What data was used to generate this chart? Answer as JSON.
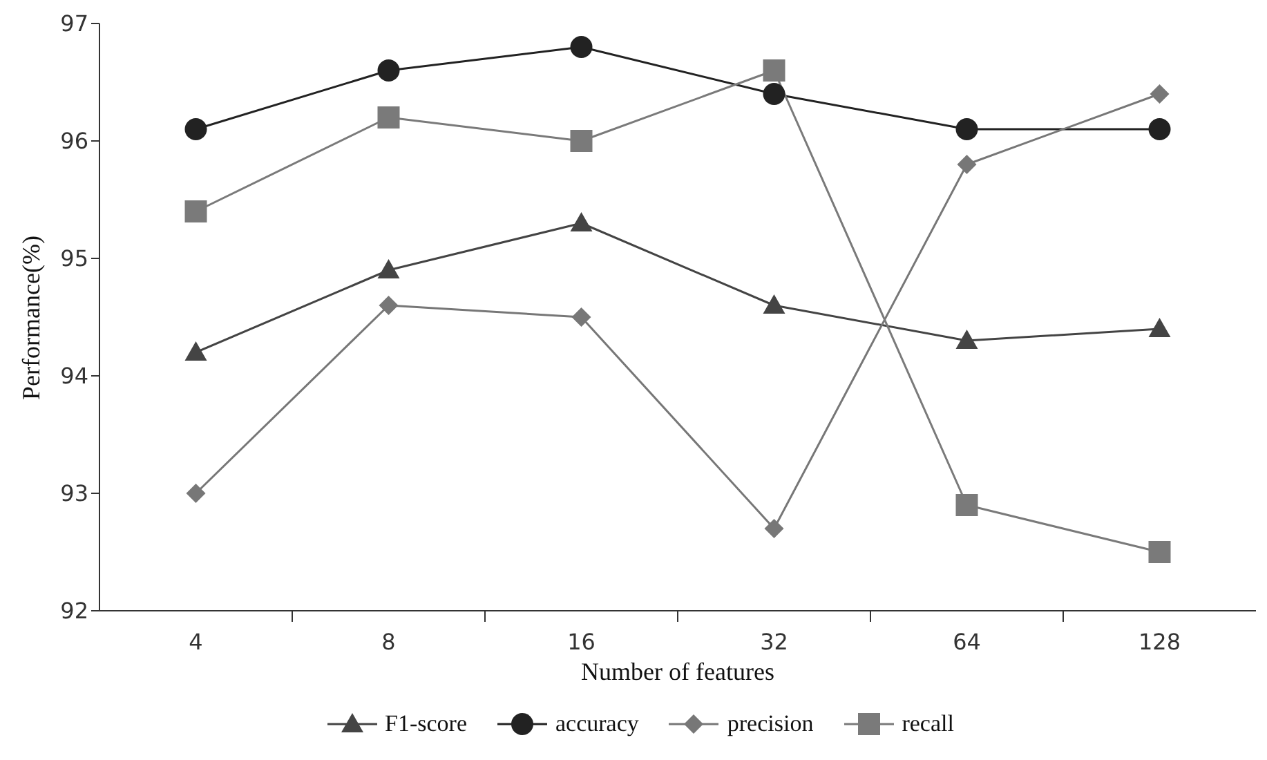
{
  "chart_data": {
    "type": "line",
    "xlabel": "Number of features",
    "ylabel": "Performance(%)",
    "categories": [
      "4",
      "8",
      "16",
      "32",
      "64",
      "128"
    ],
    "series": [
      {
        "name": "F1-score",
        "color": "#444444",
        "marker": "triangle",
        "values": [
          94.2,
          94.9,
          95.3,
          94.6,
          94.3,
          94.4
        ]
      },
      {
        "name": "accuracy",
        "color": "#222222",
        "marker": "circle",
        "values": [
          96.1,
          96.6,
          96.8,
          96.4,
          96.1,
          96.1
        ]
      },
      {
        "name": "precision",
        "color": "#777777",
        "marker": "diamond",
        "values": [
          93.0,
          94.6,
          94.5,
          92.7,
          95.8,
          96.4
        ]
      },
      {
        "name": "recall",
        "color": "#7a7a7a",
        "marker": "square",
        "values": [
          95.4,
          96.2,
          96.0,
          96.6,
          92.9,
          92.5
        ]
      }
    ],
    "ylim": [
      92,
      97
    ],
    "yticks": [
      92,
      93,
      94,
      95,
      96,
      97
    ],
    "grid": false,
    "legend": "bottom",
    "line_style": "solid"
  }
}
